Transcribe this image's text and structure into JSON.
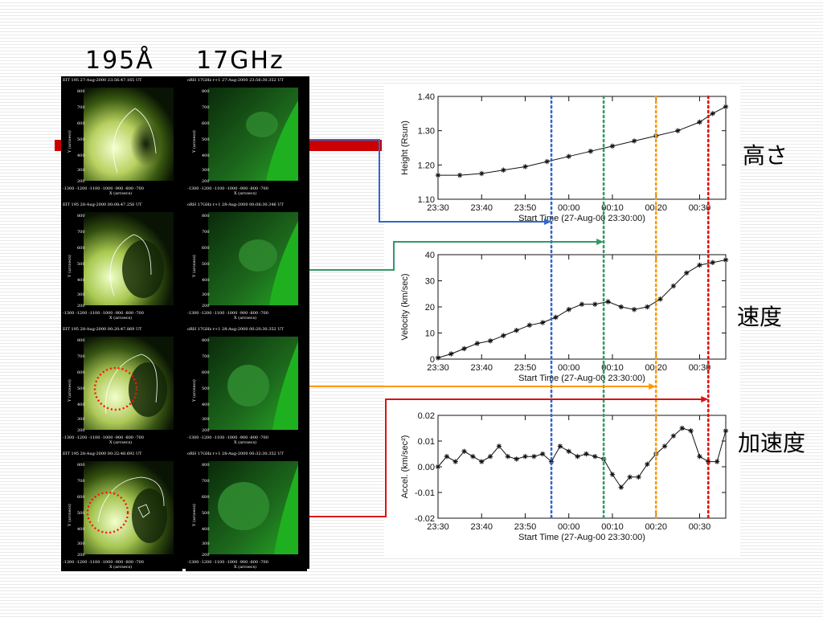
{
  "header": {
    "label_195": "195Å",
    "label_17ghz": "17GHz"
  },
  "panels": [
    {
      "eit_caption": "EIT 195 27-Aug-2000 23:56:47.165 UT",
      "nrh_caption": "oRH 17GHz r+1 27-Aug-2000 23:56:30.352 UT"
    },
    {
      "eit_caption": "EIT 195 28-Aug-2000 00:08:47.256 UT",
      "nrh_caption": "oRH 17GHz r+1 28-Aug-2000 00:08:30.346 UT"
    },
    {
      "eit_caption": "EIT 195 28-Aug-2000 00:20:47.869 UT",
      "nrh_caption": "oRH 17GHz r+1 28-Aug-2000 00:20:30.352 UT"
    },
    {
      "eit_caption": "EIT 195 28-Aug-2000 00:32:48.692 UT",
      "nrh_caption": "oRH 17GHz r+1 28-Aug-2000 00:32:30.352 UT"
    }
  ],
  "panel_axes": {
    "y_ticks": [
      "800",
      "700",
      "600",
      "500",
      "400",
      "300",
      "200"
    ],
    "x_ticks": "-1300 -1200 -1100 -1000 -900 -800 -700",
    "xlabel": "X (arcsecs)",
    "ylabel": "Y (arcsecs)"
  },
  "side_labels": {
    "height": "高さ",
    "velocity": "速度",
    "accel": "加速度"
  },
  "colors": {
    "blue": "#3366cc",
    "green": "#339966",
    "orange": "#ff9900",
    "red": "#dd1111",
    "band": "#cc0000"
  },
  "markers": [
    {
      "color": "blue",
      "time": "23:56"
    },
    {
      "color": "green",
      "time": "00:08"
    },
    {
      "color": "orange",
      "time": "00:20"
    },
    {
      "color": "red",
      "time": "00:32"
    }
  ],
  "chart_data": [
    {
      "type": "line",
      "x_ticks": [
        "23:30",
        "23:40",
        "23:50",
        "00:00",
        "00:10",
        "00:20",
        "00:30"
      ],
      "xlabel": "Start Time (27-Aug-00 23:30:00)",
      "ylabel": "Height (Rsun)",
      "y_ticks": [
        "1.10",
        "1.20",
        "1.30",
        "1.40"
      ],
      "ylim": [
        1.1,
        1.4
      ],
      "xlim_minutes": [
        0,
        66
      ],
      "marker": "asterisk",
      "x_minutes": [
        0,
        5,
        10,
        15,
        20,
        25,
        30,
        35,
        40,
        45,
        50,
        55,
        60,
        63,
        66
      ],
      "values": [
        1.17,
        1.17,
        1.175,
        1.185,
        1.195,
        1.21,
        1.225,
        1.24,
        1.255,
        1.27,
        1.285,
        1.3,
        1.325,
        1.35,
        1.37
      ]
    },
    {
      "type": "line",
      "x_ticks": [
        "23:30",
        "23:40",
        "23:50",
        "00:00",
        "00:10",
        "00:20",
        "00:30"
      ],
      "xlabel": "Start Time (27-Aug-00 23:30:00)",
      "ylabel": "Velocity (km/sec)",
      "y_ticks": [
        "0",
        "10",
        "20",
        "30",
        "40"
      ],
      "ylim": [
        0,
        40
      ],
      "xlim_minutes": [
        0,
        66
      ],
      "marker": "asterisk",
      "x_minutes": [
        0,
        3,
        6,
        9,
        12,
        15,
        18,
        21,
        24,
        27,
        30,
        33,
        36,
        39,
        42,
        45,
        48,
        51,
        54,
        57,
        60,
        63,
        66
      ],
      "values": [
        0.5,
        2,
        4,
        6,
        7,
        9,
        11,
        13,
        14,
        16,
        19,
        21,
        21,
        22,
        20,
        19,
        20,
        23,
        28,
        33,
        36,
        37,
        38
      ]
    },
    {
      "type": "line",
      "x_ticks": [
        "23:30",
        "23:40",
        "23:50",
        "00:00",
        "00:10",
        "00:20",
        "00:30"
      ],
      "xlabel": "Start Time (27-Aug-00 23:30:00)",
      "ylabel": "Accel. (km/sec²)",
      "y_ticks": [
        "-0.02",
        "-0.01",
        "0.00",
        "0.01",
        "0.02"
      ],
      "ylim": [
        -0.02,
        0.02
      ],
      "xlim_minutes": [
        0,
        66
      ],
      "marker": "asterisk",
      "x_minutes": [
        0,
        2,
        4,
        6,
        8,
        10,
        12,
        14,
        16,
        18,
        20,
        22,
        24,
        26,
        28,
        30,
        32,
        34,
        36,
        38,
        40,
        42,
        44,
        46,
        48,
        50,
        52,
        54,
        56,
        58,
        60,
        62,
        64,
        66
      ],
      "values": [
        0,
        0.004,
        0.002,
        0.006,
        0.004,
        0.002,
        0.004,
        0.008,
        0.004,
        0.003,
        0.004,
        0.004,
        0.005,
        0.002,
        0.008,
        0.006,
        0.004,
        0.005,
        0.004,
        0.003,
        -0.003,
        -0.008,
        -0.004,
        -0.004,
        0.001,
        0.005,
        0.008,
        0.012,
        0.015,
        0.014,
        0.004,
        0.002,
        0.002,
        0.014
      ]
    }
  ]
}
